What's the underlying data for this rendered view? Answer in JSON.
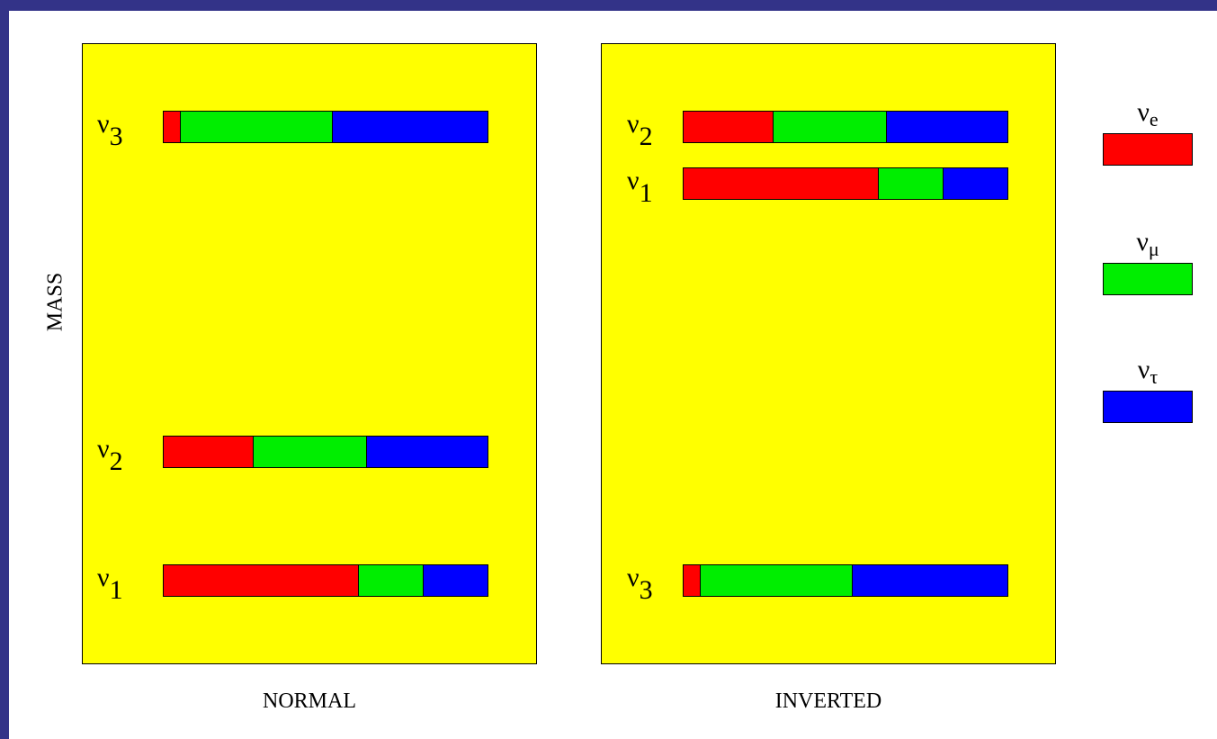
{
  "colors": {
    "frame": "#333388",
    "panel_bg": "#ffff00",
    "nu_e": "#ff0000",
    "nu_mu": "#00ee00",
    "nu_tau": "#0000ff"
  },
  "axis_label": "MASS",
  "panels": [
    {
      "label": "NORMAL",
      "levels": [
        {
          "sym": "ν",
          "sub": "3",
          "fractions": [
            0.05,
            0.47,
            0.48
          ]
        },
        {
          "sym": "ν",
          "sub": "2",
          "fractions": [
            0.275,
            0.35,
            0.375
          ]
        },
        {
          "sym": "ν",
          "sub": "1",
          "fractions": [
            0.6,
            0.2,
            0.2
          ]
        }
      ]
    },
    {
      "label": "INVERTED",
      "levels": [
        {
          "sym": "ν",
          "sub": "2",
          "fractions": [
            0.275,
            0.35,
            0.375
          ]
        },
        {
          "sym": "ν",
          "sub": "1",
          "fractions": [
            0.6,
            0.2,
            0.2
          ]
        },
        {
          "sym": "ν",
          "sub": "3",
          "fractions": [
            0.05,
            0.47,
            0.48
          ]
        }
      ]
    }
  ],
  "legend": [
    {
      "sym": "ν",
      "sub": "e",
      "color_key": "nu_e"
    },
    {
      "sym": "ν",
      "sub": "μ",
      "color_key": "nu_mu"
    },
    {
      "sym": "ν",
      "sub": "τ",
      "color_key": "nu_tau"
    }
  ]
}
